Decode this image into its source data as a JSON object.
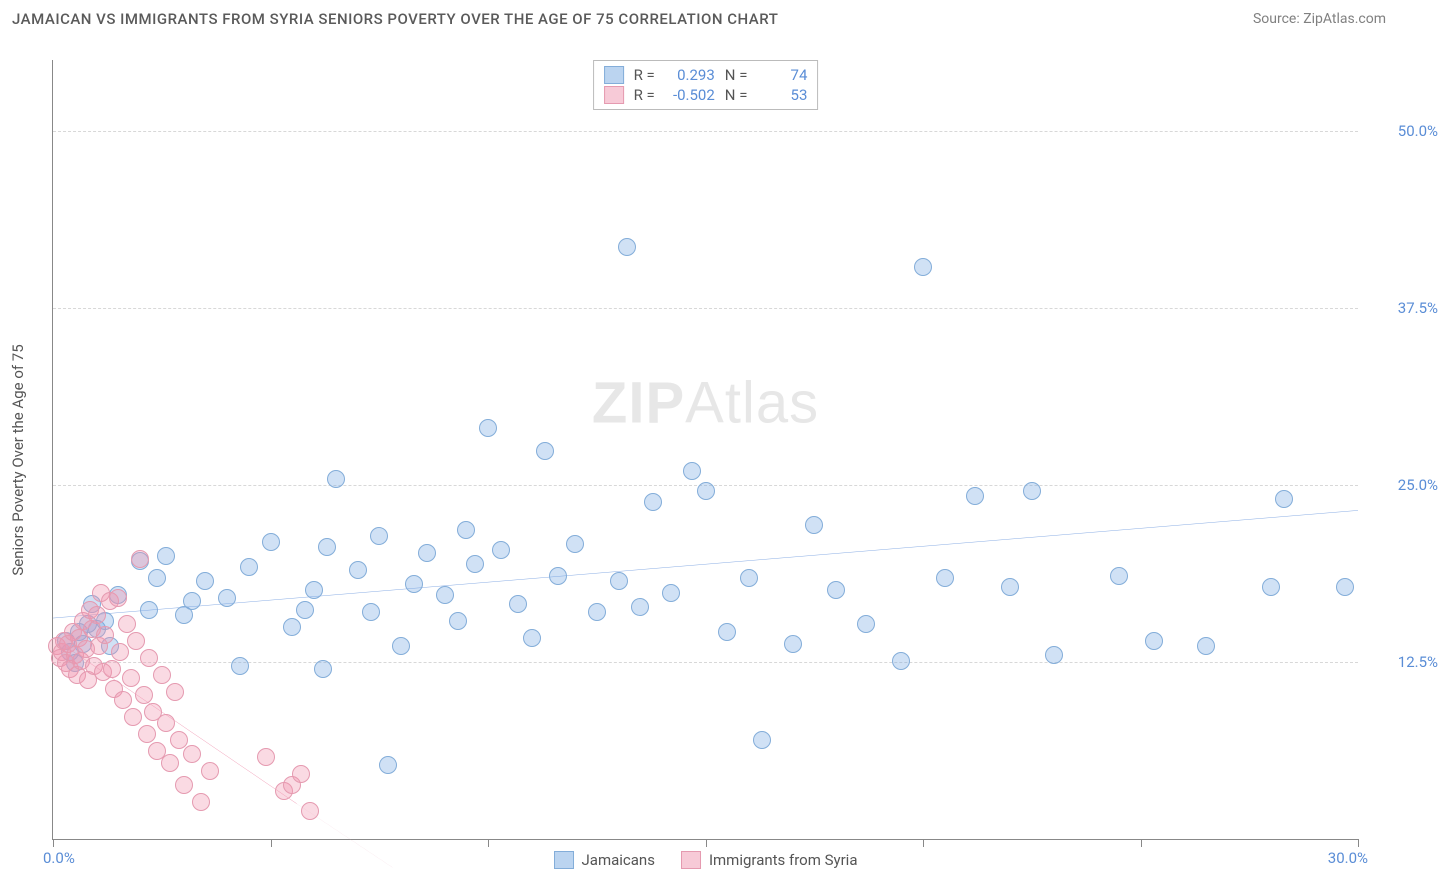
{
  "header": {
    "title": "JAMAICAN VS IMMIGRANTS FROM SYRIA SENIORS POVERTY OVER THE AGE OF 75 CORRELATION CHART",
    "source": "Source: ZipAtlas.com"
  },
  "chart": {
    "type": "scatter",
    "y_axis_title": "Seniors Poverty Over the Age of 75",
    "xlim": [
      0,
      30
    ],
    "ylim": [
      0,
      55
    ],
    "x_ticks": [
      0,
      5,
      10,
      15,
      20,
      25,
      30
    ],
    "y_gridlines": [
      12.5,
      25,
      37.5,
      50
    ],
    "y_tick_labels": [
      "12.5%",
      "25.0%",
      "37.5%",
      "50.0%"
    ],
    "x_origin_label": "0.0%",
    "x_max_label": "30.0%",
    "background_color": "#ffffff",
    "grid_color": "#d8d8d8",
    "axis_color": "#888888",
    "tick_label_color": "#5a8dd6",
    "point_radius": 9,
    "watermark": "ZIPAtlas",
    "series": [
      {
        "name": "Jamaicans",
        "fill": "rgba(120,170,225,0.35)",
        "stroke": "#83add9",
        "trend": {
          "x1": 0,
          "y1": 15.6,
          "x2": 30,
          "y2": 23.2,
          "color": "#3b76d1",
          "width": 2.5,
          "dash": ""
        },
        "points": [
          [
            0.3,
            14.0
          ],
          [
            0.4,
            13.2
          ],
          [
            0.5,
            12.4
          ],
          [
            0.6,
            14.6
          ],
          [
            0.7,
            13.8
          ],
          [
            0.8,
            15.2
          ],
          [
            0.9,
            16.6
          ],
          [
            1.0,
            14.8
          ],
          [
            1.2,
            15.4
          ],
          [
            1.3,
            13.6
          ],
          [
            1.5,
            17.2
          ],
          [
            2.0,
            19.6
          ],
          [
            2.2,
            16.2
          ],
          [
            2.4,
            18.4
          ],
          [
            2.6,
            20.0
          ],
          [
            3.0,
            15.8
          ],
          [
            3.2,
            16.8
          ],
          [
            3.5,
            18.2
          ],
          [
            4.0,
            17.0
          ],
          [
            4.3,
            12.2
          ],
          [
            4.5,
            19.2
          ],
          [
            5.0,
            21.0
          ],
          [
            5.5,
            15.0
          ],
          [
            5.8,
            16.2
          ],
          [
            6.0,
            17.6
          ],
          [
            6.2,
            12.0
          ],
          [
            6.3,
            20.6
          ],
          [
            6.5,
            25.4
          ],
          [
            7.0,
            19.0
          ],
          [
            7.3,
            16.0
          ],
          [
            7.5,
            21.4
          ],
          [
            7.7,
            5.2
          ],
          [
            8.0,
            13.6
          ],
          [
            8.3,
            18.0
          ],
          [
            8.6,
            20.2
          ],
          [
            9.0,
            17.2
          ],
          [
            9.3,
            15.4
          ],
          [
            9.5,
            21.8
          ],
          [
            9.7,
            19.4
          ],
          [
            10.0,
            29.0
          ],
          [
            10.3,
            20.4
          ],
          [
            10.7,
            16.6
          ],
          [
            11.0,
            14.2
          ],
          [
            11.3,
            27.4
          ],
          [
            11.6,
            18.6
          ],
          [
            12.0,
            20.8
          ],
          [
            12.5,
            16.0
          ],
          [
            13.0,
            18.2
          ],
          [
            13.2,
            41.8
          ],
          [
            13.5,
            16.4
          ],
          [
            13.8,
            23.8
          ],
          [
            14.2,
            17.4
          ],
          [
            14.7,
            26.0
          ],
          [
            15.0,
            24.6
          ],
          [
            15.5,
            14.6
          ],
          [
            16.0,
            18.4
          ],
          [
            16.3,
            7.0
          ],
          [
            17.0,
            13.8
          ],
          [
            17.5,
            22.2
          ],
          [
            18.0,
            17.6
          ],
          [
            18.7,
            15.2
          ],
          [
            19.5,
            12.6
          ],
          [
            20.0,
            40.4
          ],
          [
            20.5,
            18.4
          ],
          [
            21.2,
            24.2
          ],
          [
            22.0,
            17.8
          ],
          [
            22.5,
            24.6
          ],
          [
            23.0,
            13.0
          ],
          [
            24.5,
            18.6
          ],
          [
            25.3,
            14.0
          ],
          [
            26.5,
            13.6
          ],
          [
            28.0,
            17.8
          ],
          [
            28.3,
            24.0
          ],
          [
            29.7,
            17.8
          ]
        ]
      },
      {
        "name": "Immigrants from Syria",
        "fill": "rgba(240,150,175,0.35)",
        "stroke": "#e59ab0",
        "trend": {
          "x1": 0,
          "y1": 14.2,
          "x2": 5.6,
          "y2": 2.5,
          "color": "#e75f8a",
          "width": 2.5,
          "dash": ""
        },
        "trend_ext": {
          "x1": 5.6,
          "y1": 2.5,
          "x2": 7.8,
          "y2": -2.0,
          "color": "#e9a6ba",
          "width": 1.5,
          "dash": "5,4"
        },
        "points": [
          [
            0.1,
            13.6
          ],
          [
            0.15,
            12.8
          ],
          [
            0.2,
            13.2
          ],
          [
            0.25,
            14.0
          ],
          [
            0.3,
            12.4
          ],
          [
            0.35,
            13.8
          ],
          [
            0.4,
            12.0
          ],
          [
            0.45,
            14.6
          ],
          [
            0.5,
            13.0
          ],
          [
            0.55,
            11.6
          ],
          [
            0.6,
            14.2
          ],
          [
            0.65,
            12.6
          ],
          [
            0.7,
            15.4
          ],
          [
            0.75,
            13.4
          ],
          [
            0.8,
            11.2
          ],
          [
            0.85,
            16.2
          ],
          [
            0.9,
            14.8
          ],
          [
            0.95,
            12.2
          ],
          [
            1.0,
            15.8
          ],
          [
            1.05,
            13.6
          ],
          [
            1.1,
            17.4
          ],
          [
            1.15,
            11.8
          ],
          [
            1.2,
            14.4
          ],
          [
            1.3,
            16.8
          ],
          [
            1.35,
            12.0
          ],
          [
            1.4,
            10.6
          ],
          [
            1.5,
            17.0
          ],
          [
            1.55,
            13.2
          ],
          [
            1.6,
            9.8
          ],
          [
            1.7,
            15.2
          ],
          [
            1.8,
            11.4
          ],
          [
            1.85,
            8.6
          ],
          [
            1.9,
            14.0
          ],
          [
            2.0,
            19.8
          ],
          [
            2.1,
            10.2
          ],
          [
            2.15,
            7.4
          ],
          [
            2.2,
            12.8
          ],
          [
            2.3,
            9.0
          ],
          [
            2.4,
            6.2
          ],
          [
            2.5,
            11.6
          ],
          [
            2.6,
            8.2
          ],
          [
            2.7,
            5.4
          ],
          [
            2.8,
            10.4
          ],
          [
            2.9,
            7.0
          ],
          [
            3.0,
            3.8
          ],
          [
            3.2,
            6.0
          ],
          [
            3.4,
            2.6
          ],
          [
            3.6,
            4.8
          ],
          [
            4.9,
            5.8
          ],
          [
            5.3,
            3.4
          ],
          [
            5.5,
            3.8
          ],
          [
            5.7,
            4.6
          ],
          [
            5.9,
            2.0
          ]
        ]
      }
    ],
    "top_legend": {
      "rows": [
        {
          "swatch_fill": "rgba(120,170,225,0.5)",
          "swatch_stroke": "#83add9",
          "r_label": "R =",
          "r_value": "0.293",
          "n_label": "N =",
          "n_value": "74"
        },
        {
          "swatch_fill": "rgba(240,150,175,0.5)",
          "swatch_stroke": "#e59ab0",
          "r_label": "R =",
          "r_value": "-0.502",
          "n_label": "N =",
          "n_value": "53"
        }
      ]
    },
    "bottom_legend": {
      "items": [
        {
          "swatch_fill": "rgba(120,170,225,0.5)",
          "swatch_stroke": "#83add9",
          "label": "Jamaicans"
        },
        {
          "swatch_fill": "rgba(240,150,175,0.5)",
          "swatch_stroke": "#e59ab0",
          "label": "Immigrants from Syria"
        }
      ]
    }
  }
}
